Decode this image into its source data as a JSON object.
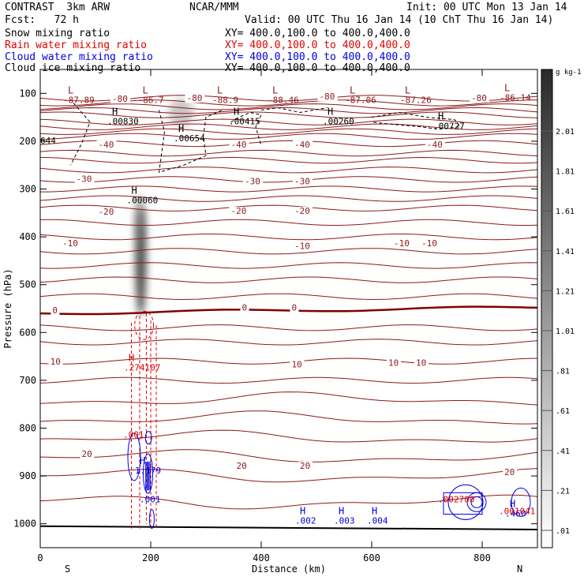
{
  "header": {
    "model": "CONTRAST  3km ARW",
    "org": "NCAR/MMM",
    "init": "Init: 00 UTC Mon 13 Jan 14",
    "fcst": "Fcst:   72 h",
    "valid": "Valid: 00 UTC Thu 16 Jan 14 (10 ChT Thu 16 Jan 14)",
    "fields": [
      {
        "label": "Snow mixing ratio",
        "xy": "XY= 400.0,100.0 to 400.0,400.0",
        "color": "#000000"
      },
      {
        "label": "Rain water mixing ratio",
        "xy": "XY= 400.0,100.0 to 400.0,400.0",
        "color": "#e00000"
      },
      {
        "label": "Cloud water mixing ratio",
        "xy": "XY= 400.0,100.0 to 400.0,400.0",
        "color": "#0000e0"
      },
      {
        "label": "Cloud ice mixing ratio",
        "xy": "XY= 400.0,100.0 to 400.0,400.0",
        "color": "#000000"
      }
    ]
  },
  "colors": {
    "temperature": "#8b1a1a",
    "freezing": "#800000",
    "rain": "#e00000",
    "cloud_water": "#0000e0",
    "ice": "#000000",
    "snow": "#333333"
  },
  "chart_data": {
    "type": "contour cross-section",
    "xlabel": "Distance (km)",
    "ylabel": "Pressure (hPa)",
    "xlim": [
      0,
      900
    ],
    "ylim": [
      1050,
      50
    ],
    "x_ticks": [
      "0",
      "200",
      "400",
      "600",
      "800"
    ],
    "y_ticks": [
      "100",
      "200",
      "300",
      "400",
      "500",
      "600",
      "700",
      "800",
      "900",
      "1000"
    ],
    "end_labels": {
      "left": "S",
      "right": "N"
    },
    "colorbar": {
      "unit": "g kg-1",
      "labels": [
        ".01",
        ".21",
        ".41",
        ".61",
        ".81",
        "1.01",
        "1.21",
        "1.41",
        "1.61",
        "1.81",
        "2.01"
      ]
    },
    "temperature_labels": [
      {
        "text": "-80",
        "x": 130,
        "p": 118
      },
      {
        "text": "-80",
        "x": 265,
        "p": 116
      },
      {
        "text": "-80",
        "x": 505,
        "p": 113
      },
      {
        "text": "-80",
        "x": 780,
        "p": 116
      },
      {
        "text": "-40",
        "x": 105,
        "p": 213
      },
      {
        "text": "-40",
        "x": 345,
        "p": 213
      },
      {
        "text": "-40",
        "x": 460,
        "p": 213
      },
      {
        "text": "-40",
        "x": 700,
        "p": 213
      },
      {
        "text": "-30",
        "x": 65,
        "p": 285
      },
      {
        "text": "-30",
        "x": 370,
        "p": 290
      },
      {
        "text": "-30",
        "x": 460,
        "p": 290
      },
      {
        "text": "-20",
        "x": 105,
        "p": 354
      },
      {
        "text": "-20",
        "x": 345,
        "p": 352
      },
      {
        "text": "-20",
        "x": 460,
        "p": 352
      },
      {
        "text": "-10",
        "x": 40,
        "p": 420
      },
      {
        "text": "-10",
        "x": 460,
        "p": 425
      },
      {
        "text": "-10",
        "x": 640,
        "p": 420
      },
      {
        "text": "-10",
        "x": 690,
        "p": 420
      },
      {
        "text": "0",
        "x": 22,
        "p": 560
      },
      {
        "text": "0",
        "x": 365,
        "p": 554
      },
      {
        "text": "0",
        "x": 455,
        "p": 554
      },
      {
        "text": "10",
        "x": 18,
        "p": 667
      },
      {
        "text": "10",
        "x": 455,
        "p": 673
      },
      {
        "text": "10",
        "x": 630,
        "p": 670
      },
      {
        "text": "10",
        "x": 680,
        "p": 670
      },
      {
        "text": "20",
        "x": 75,
        "p": 860
      },
      {
        "text": "20",
        "x": 355,
        "p": 885
      },
      {
        "text": "20",
        "x": 470,
        "p": 885
      },
      {
        "text": "20",
        "x": 840,
        "p": 898
      }
    ],
    "extrema": [
      {
        "mark": "L",
        "value": "-87.89",
        "x": 50,
        "p": 100,
        "color": "#8b1a1a"
      },
      {
        "mark": "L",
        "value": "-86.7",
        "x": 185,
        "p": 100,
        "color": "#8b1a1a"
      },
      {
        "mark": "L",
        "value": "-88.9",
        "x": 320,
        "p": 100,
        "color": "#8b1a1a"
      },
      {
        "mark": "L",
        "value": "-88.46",
        "x": 420,
        "p": 100,
        "color": "#8b1a1a"
      },
      {
        "mark": "L",
        "value": "-87.06",
        "x": 560,
        "p": 100,
        "color": "#8b1a1a"
      },
      {
        "mark": "L",
        "value": "-87.26",
        "x": 660,
        "p": 100,
        "color": "#8b1a1a"
      },
      {
        "mark": "L",
        "value": "-86.14",
        "x": 840,
        "p": 95,
        "color": "#8b1a1a"
      },
      {
        "mark": "H",
        "value": ".00830",
        "x": 130,
        "p": 145,
        "color": "#000000"
      },
      {
        "mark": "H",
        "value": ".00654",
        "x": 250,
        "p": 180,
        "color": "#000000"
      },
      {
        "mark": "H",
        "value": ".00415",
        "x": 350,
        "p": 145,
        "color": "#000000"
      },
      {
        "mark": "H",
        "value": ".00260",
        "x": 520,
        "p": 145,
        "color": "#000000"
      },
      {
        "mark": "H",
        "value": ".00727",
        "x": 720,
        "p": 155,
        "color": "#000000"
      },
      {
        "mark": "H",
        "value": ".00060",
        "x": 165,
        "p": 310,
        "color": "#000000"
      },
      {
        "mark": "H",
        "value": ".274107",
        "x": 160,
        "p": 660,
        "color": "#e00000"
      },
      {
        "mark": "H",
        "value": "1.179",
        "x": 180,
        "p": 875,
        "color": "#0000e0"
      },
      {
        "mark": "H",
        "value": ".002",
        "x": 470,
        "p": 980,
        "color": "#0000e0"
      },
      {
        "mark": "H",
        "value": ".003",
        "x": 540,
        "p": 980,
        "color": "#0000e0"
      },
      {
        "mark": "H",
        "value": ".004",
        "x": 600,
        "p": 980,
        "color": "#0000e0"
      },
      {
        "mark": "H",
        "value": ".460",
        "x": 850,
        "p": 965,
        "color": "#0000e0"
      }
    ],
    "other_labels": [
      {
        "text": "644",
        "x": 0,
        "p": 205,
        "color": "#000000"
      },
      {
        "text": ".001",
        "x": 150,
        "p": 820,
        "color": "#e00000"
      },
      {
        "text": ".001",
        "x": 180,
        "p": 955,
        "color": "#0000e0"
      },
      {
        "text": ".002700",
        "x": 720,
        "p": 955,
        "color": "#e00000"
      },
      {
        "text": ".001041",
        "x": 830,
        "p": 980,
        "color": "#e00000"
      }
    ]
  }
}
